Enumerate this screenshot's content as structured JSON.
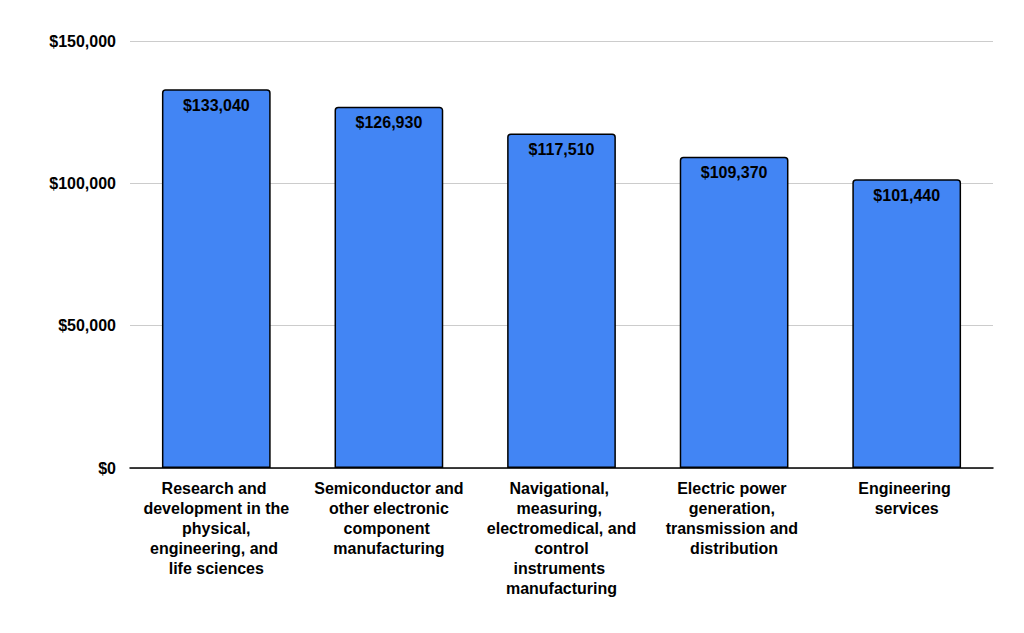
{
  "chart_data": {
    "type": "bar",
    "categories": [
      "Research and development in the physical, engineering, and life sciences",
      "Semiconductor and other electronic component manufacturing",
      "Navigational, measuring, electromedical, and control instruments manufacturing",
      "Electric power generation, transmission and distribution",
      "Engineering services"
    ],
    "values": [
      133040,
      126930,
      117510,
      109370,
      101440
    ],
    "value_labels": [
      "$133,040",
      "$126,930",
      "$117,510",
      "$109,370",
      "$101,440"
    ],
    "color": "#4285f4",
    "ylim": [
      0,
      150000
    ],
    "yticks": [
      {
        "value": 0,
        "label": "$0"
      },
      {
        "value": 50000,
        "label": "$50,000"
      },
      {
        "value": 100000,
        "label": "$100,000"
      },
      {
        "value": 150000,
        "label": "$150,000"
      }
    ],
    "grid": true,
    "data_labels": true
  }
}
